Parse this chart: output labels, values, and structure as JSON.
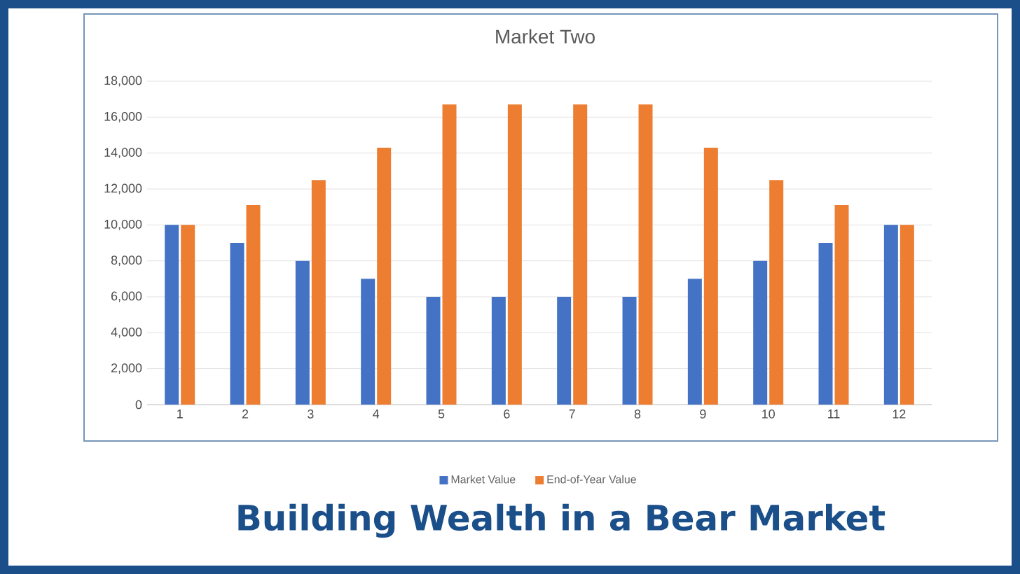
{
  "chart_data": {
    "type": "bar",
    "title": "Market Two",
    "categories": [
      "1",
      "2",
      "3",
      "4",
      "5",
      "6",
      "7",
      "8",
      "9",
      "10",
      "11",
      "12"
    ],
    "series": [
      {
        "name": "Market Value",
        "color": "#4472c4",
        "values": [
          10000,
          9000,
          8000,
          7000,
          6000,
          6000,
          6000,
          6000,
          7000,
          8000,
          9000,
          10000
        ]
      },
      {
        "name": "End-of-Year Value",
        "color": "#ed7d31",
        "values": [
          10000,
          11100,
          12500,
          14300,
          16700,
          16700,
          16700,
          16700,
          14300,
          12500,
          11100,
          10000
        ]
      }
    ],
    "ylim": [
      0,
      18000
    ],
    "yticks": [
      {
        "value": 0,
        "label": "0"
      },
      {
        "value": 2000,
        "label": "2,000"
      },
      {
        "value": 4000,
        "label": "4,000"
      },
      {
        "value": 6000,
        "label": "6,000"
      },
      {
        "value": 8000,
        "label": "8,000"
      },
      {
        "value": 10000,
        "label": "10,000"
      },
      {
        "value": 12000,
        "label": "12,000"
      },
      {
        "value": 14000,
        "label": "14,000"
      },
      {
        "value": 16000,
        "label": "16,000"
      },
      {
        "value": 18000,
        "label": "18,000"
      }
    ],
    "grid": "y",
    "legend": "bottom",
    "annotations": [
      "Building Wealth in a Bear Market"
    ]
  }
}
